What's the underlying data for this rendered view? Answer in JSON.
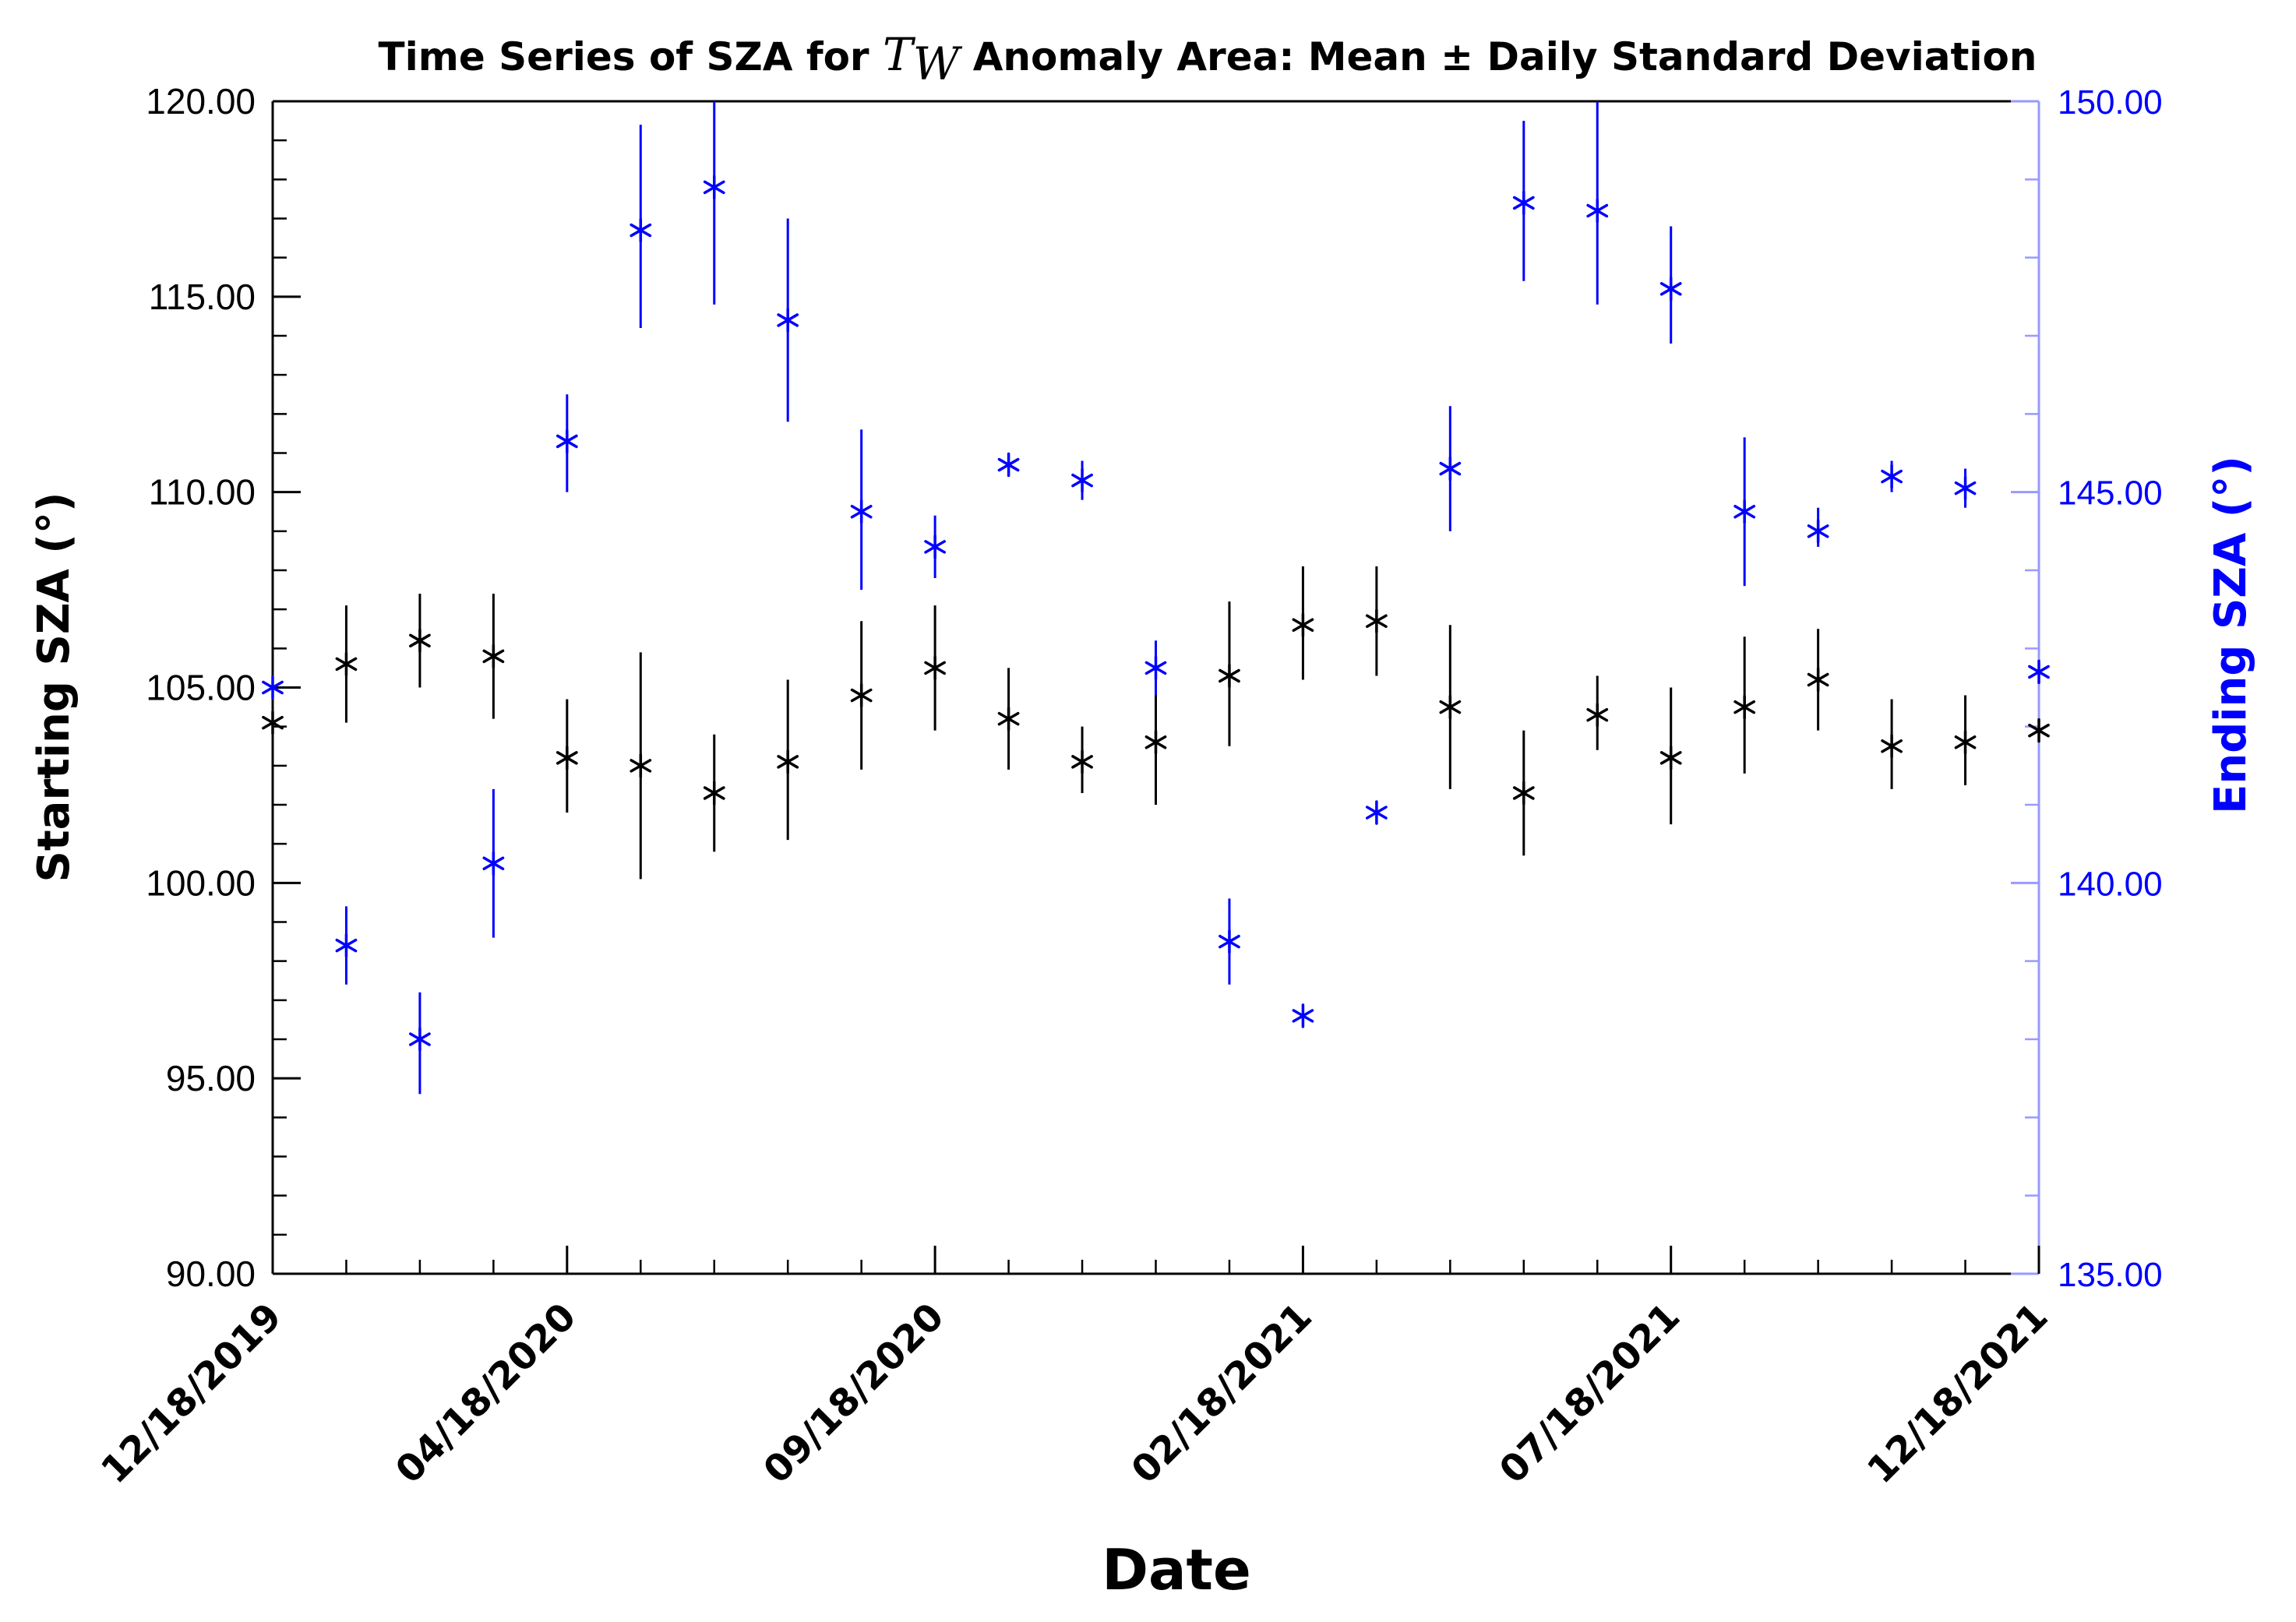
{
  "chart_data": {
    "type": "scatter",
    "title": {
      "prefix": "Time Series of SZA for ",
      "symbol_main": "T",
      "symbol_sub": "W",
      "suffix": " Anomaly Area: Mean ± Daily Standard Deviation"
    },
    "xlabel": "Date",
    "ylabel_left": "Starting  SZA (°)",
    "ylabel_right": "Ending  SZA (°)",
    "x_range": [
      0,
      24
    ],
    "ylim_left": [
      90,
      120
    ],
    "ylim_right": [
      135,
      150
    ],
    "left_ticks": [
      {
        "value": 90,
        "label": "90.00"
      },
      {
        "value": 95,
        "label": "95.00"
      },
      {
        "value": 100,
        "label": "100.00"
      },
      {
        "value": 105,
        "label": "105.00"
      },
      {
        "value": 110,
        "label": "110.00"
      },
      {
        "value": 115,
        "label": "115.00"
      },
      {
        "value": 120,
        "label": "120.00"
      }
    ],
    "right_ticks": [
      {
        "value": 135,
        "label": "135.00"
      },
      {
        "value": 140,
        "label": "140.00"
      },
      {
        "value": 145,
        "label": "145.00"
      },
      {
        "value": 150,
        "label": "150.00"
      }
    ],
    "right_minor_ticks": [
      136,
      137,
      138,
      139,
      141,
      142,
      143,
      144,
      146,
      147,
      148,
      149
    ],
    "x_major_ticks": [
      {
        "value": 0,
        "label": "12/18/2019"
      },
      {
        "value": 4,
        "label": "04/18/2020"
      },
      {
        "value": 9,
        "label": "09/18/2020"
      },
      {
        "value": 14,
        "label": "02/18/2021"
      },
      {
        "value": 19,
        "label": "07/18/2021"
      },
      {
        "value": 24,
        "label": "12/18/2021"
      }
    ],
    "x_minor_ticks": [
      1,
      2,
      3,
      5,
      6,
      7,
      8,
      10,
      11,
      12,
      13,
      15,
      16,
      17,
      18,
      20,
      21,
      22,
      23
    ],
    "series": [
      {
        "name": "Starting SZA",
        "axis": "left",
        "color": "#000000",
        "x": [
          0,
          1,
          2,
          3,
          4,
          5,
          6,
          7,
          8,
          9,
          10,
          11,
          12,
          13,
          14,
          15,
          16,
          17,
          18,
          19,
          20,
          21,
          22,
          23,
          24
        ],
        "mean": [
          104.1,
          105.6,
          106.2,
          105.8,
          103.2,
          103.0,
          102.3,
          103.1,
          104.8,
          105.5,
          104.2,
          103.1,
          103.6,
          105.3,
          106.6,
          106.7,
          104.5,
          102.3,
          104.3,
          103.2,
          104.5,
          105.2,
          103.5,
          103.6,
          103.9
        ],
        "low": [
          104.1,
          104.1,
          105.0,
          104.2,
          101.8,
          100.1,
          100.8,
          101.1,
          102.9,
          103.9,
          102.9,
          102.3,
          102.0,
          103.5,
          105.2,
          105.3,
          102.4,
          100.7,
          103.4,
          101.5,
          102.8,
          103.9,
          102.4,
          102.5,
          103.9
        ],
        "high": [
          104.1,
          107.1,
          107.4,
          107.4,
          104.7,
          105.9,
          103.8,
          105.2,
          106.7,
          107.1,
          105.5,
          104.0,
          105.1,
          107.2,
          108.1,
          108.1,
          106.6,
          103.9,
          105.3,
          105.0,
          106.3,
          106.5,
          104.7,
          104.8,
          103.9
        ]
      },
      {
        "name": "Ending SZA",
        "axis": "right",
        "color": "#0000ff",
        "x": [
          0,
          1,
          2,
          3,
          4,
          5,
          6,
          7,
          8,
          9,
          10,
          11,
          12,
          13,
          14,
          15,
          16,
          17,
          18,
          19,
          20,
          21,
          22,
          23,
          24
        ],
        "mean": [
          142.5,
          139.2,
          138.0,
          140.25,
          145.65,
          148.35,
          148.9,
          147.2,
          144.75,
          144.3,
          145.35,
          145.15,
          142.75,
          139.25,
          138.3,
          140.9,
          145.3,
          148.7,
          148.6,
          147.6,
          144.75,
          144.5,
          145.2,
          145.05,
          142.7
        ],
        "low": [
          142.5,
          138.7,
          137.3,
          139.3,
          145.0,
          147.1,
          147.4,
          145.9,
          143.75,
          143.9,
          145.2,
          144.9,
          142.4,
          138.7,
          138.3,
          140.9,
          144.5,
          147.7,
          147.4,
          146.9,
          143.8,
          144.3,
          145.0,
          144.8,
          142.7
        ],
        "high": [
          142.5,
          139.7,
          138.6,
          141.2,
          146.25,
          149.7,
          150.0,
          148.5,
          145.8,
          144.7,
          145.5,
          145.4,
          143.1,
          139.8,
          138.3,
          140.9,
          146.1,
          149.75,
          150.0,
          148.4,
          145.7,
          144.8,
          145.4,
          145.3,
          142.7
        ]
      }
    ],
    "legend": "none",
    "grid": false
  }
}
